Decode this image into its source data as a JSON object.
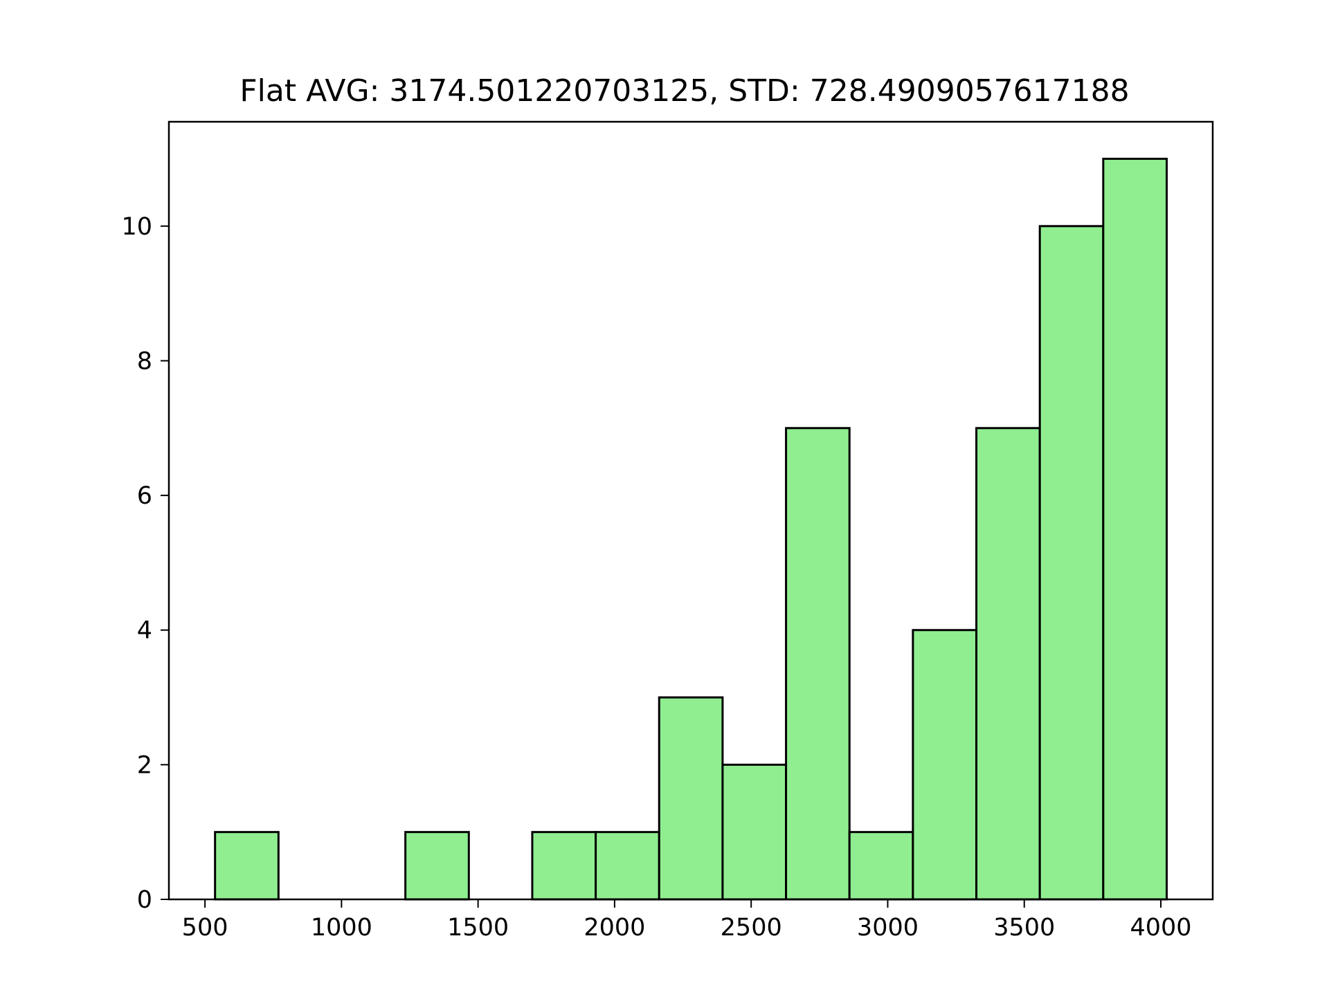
{
  "chart_data": {
    "type": "bar",
    "title": "Flat AVG: 3174.501220703125, STD: 728.4909057617188",
    "xlabel": "",
    "ylabel": "",
    "bin_edges": [
      537,
      769.3,
      1001.6,
      1233.9,
      1466.2,
      1698.5,
      1930.8,
      2163.1,
      2395.4,
      2627.7,
      2860,
      3092.3,
      3324.6,
      3556.9,
      3789.2,
      4021.5
    ],
    "counts": [
      1,
      0,
      0,
      1,
      0,
      1,
      1,
      3,
      2,
      7,
      1,
      4,
      7,
      10,
      11
    ],
    "xlim": [
      368,
      4190
    ],
    "ylim": [
      0,
      11.55
    ],
    "xticks": [
      500,
      1000,
      1500,
      2000,
      2500,
      3000,
      3500,
      4000
    ],
    "yticks": [
      0,
      2,
      4,
      6,
      8,
      10
    ],
    "bar_color": "#90ee90",
    "edge_color": "#000000",
    "grid": false
  }
}
